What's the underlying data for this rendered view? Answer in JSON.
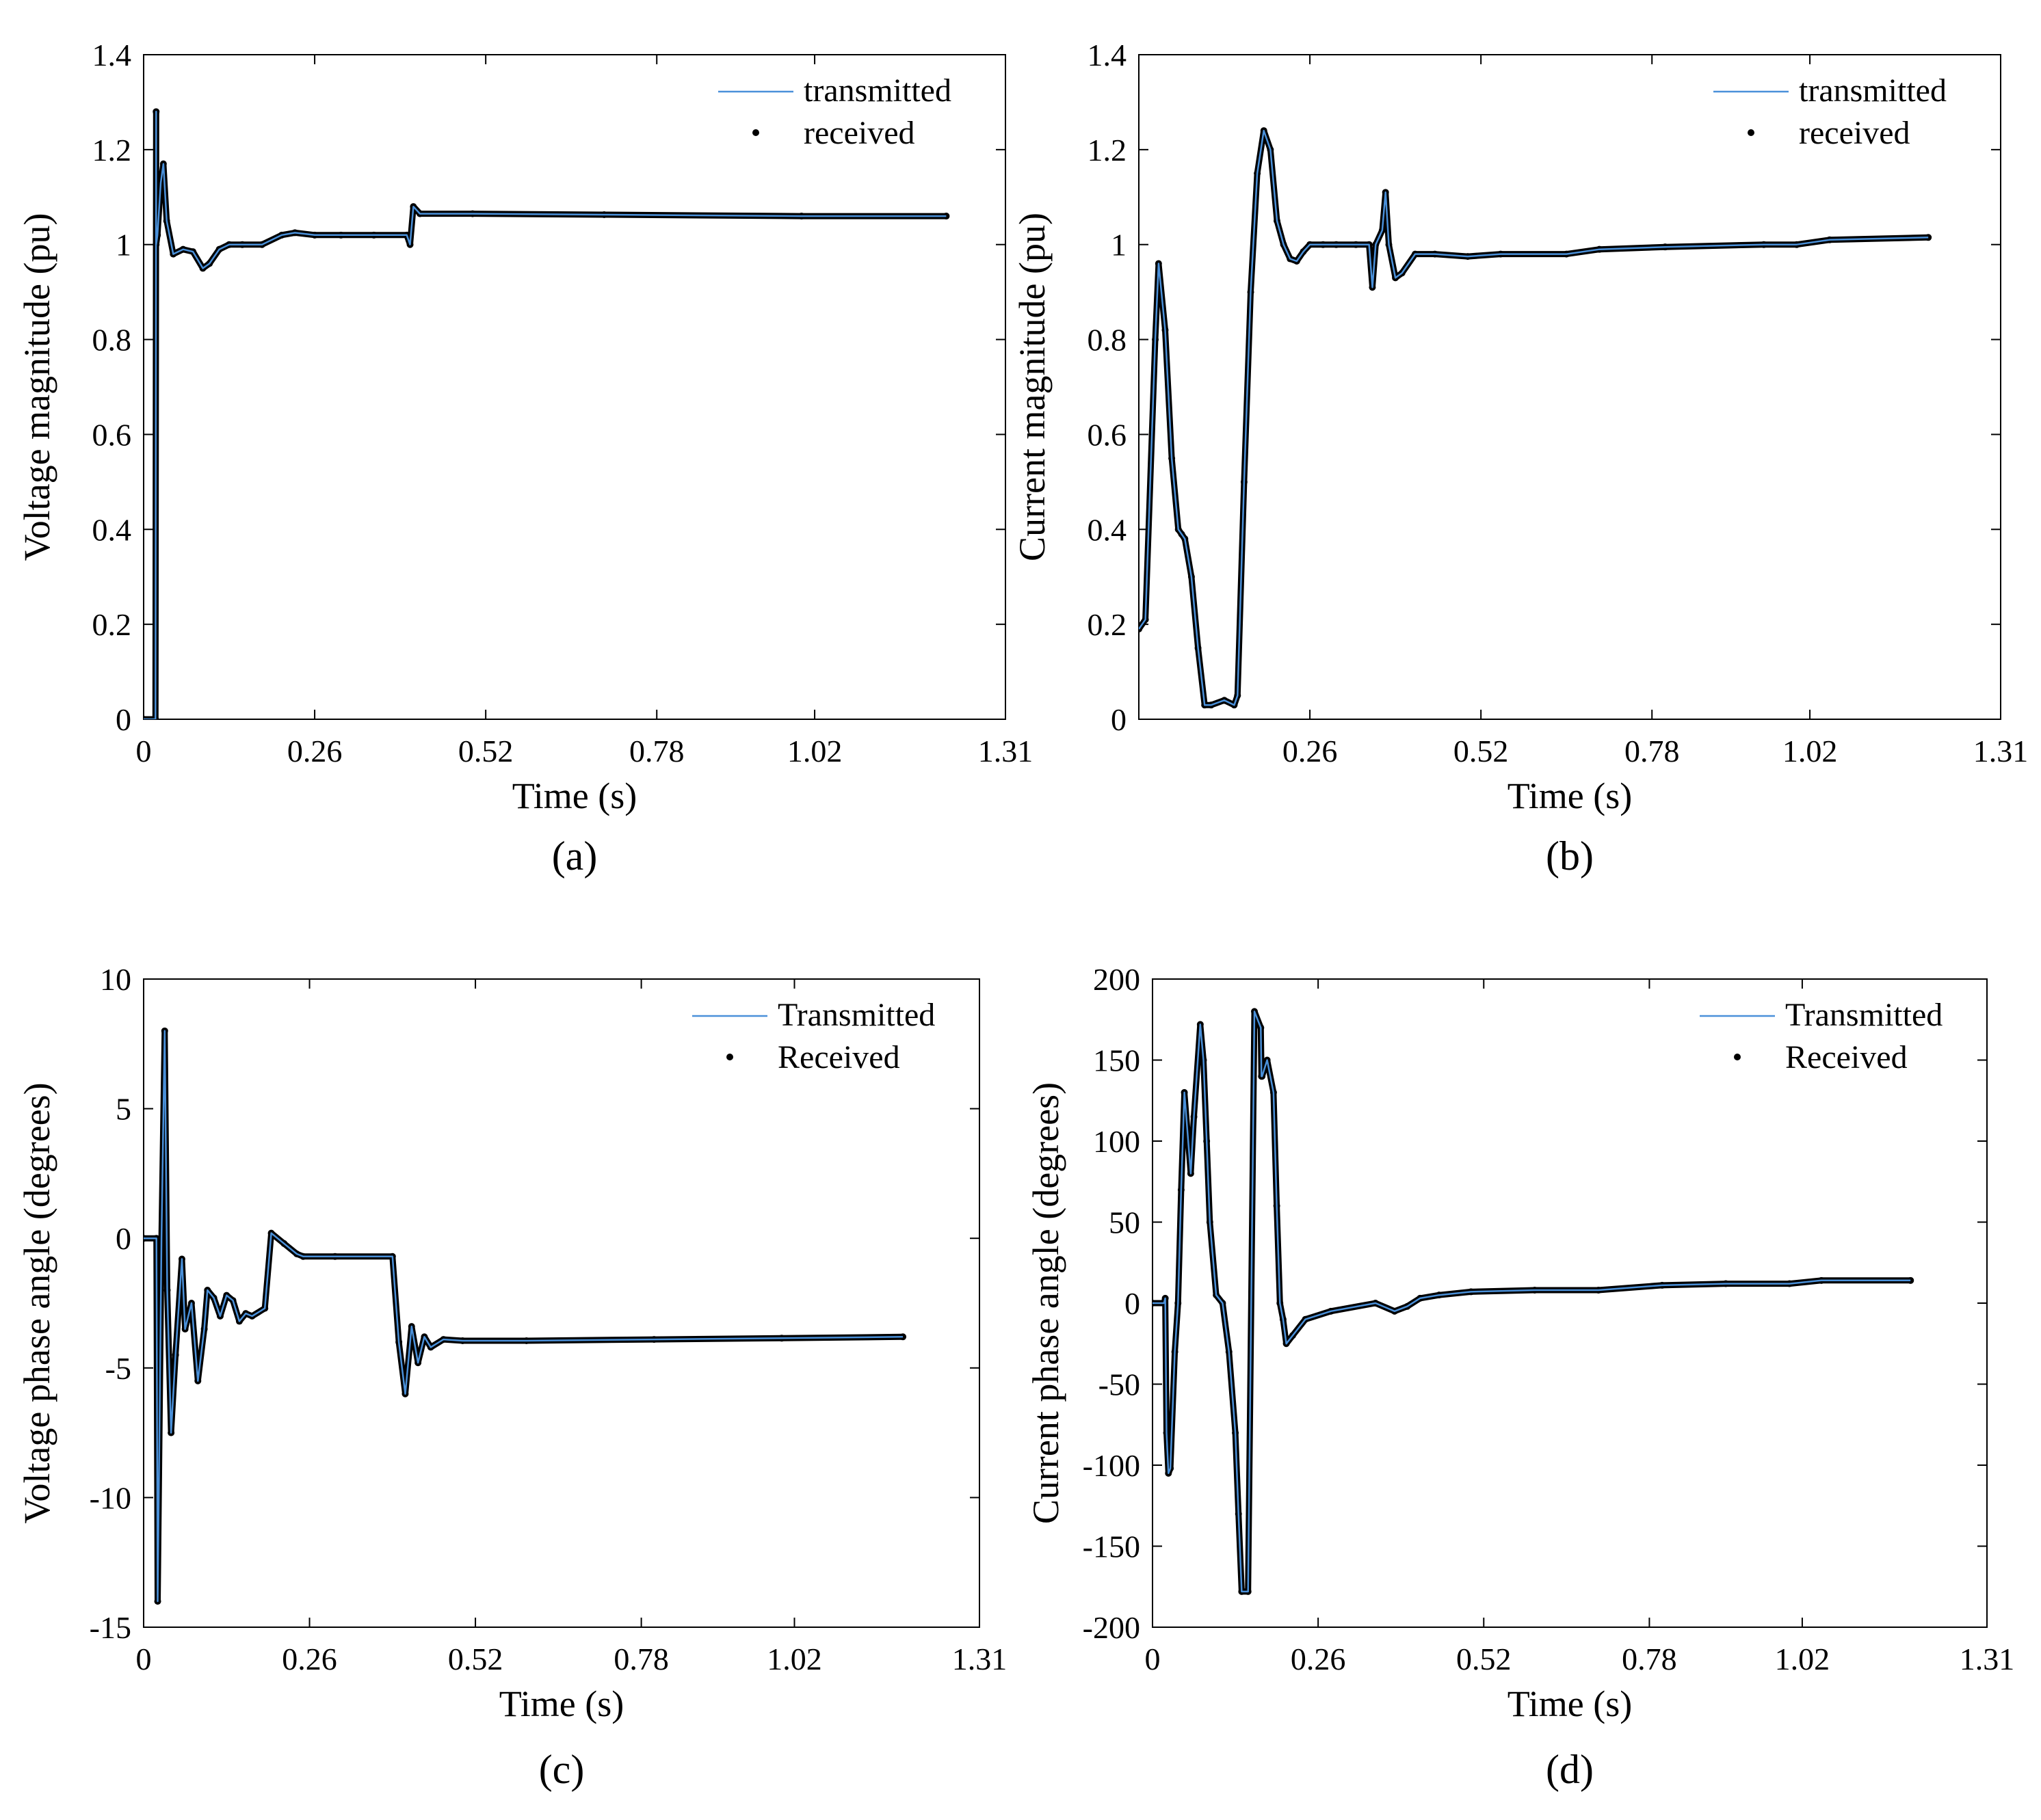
{
  "chart_data": [
    {
      "id": "a",
      "type": "line",
      "panel_label": "(a)",
      "xlabel": "Time (s)",
      "ylabel": "Voltage magnitude (pu)",
      "xlim": [
        0,
        1.31
      ],
      "ylim": [
        0,
        1.4
      ],
      "xticks": [
        0,
        0.26,
        0.52,
        0.78,
        1.02,
        1.31
      ],
      "xtick_labels": [
        "0",
        "0.26",
        "0.52",
        "0.78",
        "1.02",
        "1.31"
      ],
      "yticks": [
        0,
        0.2,
        0.4,
        0.6,
        0.8,
        1,
        1.2,
        1.4
      ],
      "ytick_labels": [
        "0",
        "0.2",
        "0.4",
        "0.6",
        "0.8",
        "1",
        "1.2",
        "1.4"
      ],
      "legend": [
        "transmitted",
        "received"
      ],
      "legend_position": "top-right",
      "series": [
        {
          "name": "transmitted",
          "color": "#4a90d9",
          "x": [
            0,
            0.018,
            0.019,
            0.019,
            0.021,
            0.026,
            0.03,
            0.035,
            0.045,
            0.06,
            0.075,
            0.09,
            0.1,
            0.115,
            0.13,
            0.15,
            0.18,
            0.21,
            0.23,
            0.26,
            0.3,
            0.35,
            0.4,
            0.405,
            0.41,
            0.42,
            0.5,
            0.7,
            1.0,
            1.22
          ],
          "y": [
            0,
            0,
            1.28,
            1.0,
            1.02,
            1.13,
            1.17,
            1.05,
            0.98,
            0.99,
            0.985,
            0.95,
            0.96,
            0.99,
            1.0,
            1.0,
            1.0,
            1.02,
            1.025,
            1.02,
            1.02,
            1.02,
            1.02,
            1.0,
            1.08,
            1.065,
            1.065,
            1.063,
            1.06,
            1.06
          ]
        },
        {
          "name": "received",
          "color": "#000000",
          "x": [
            0,
            0.018,
            0.019,
            0.019,
            0.021,
            0.026,
            0.03,
            0.035,
            0.045,
            0.06,
            0.075,
            0.09,
            0.1,
            0.115,
            0.13,
            0.15,
            0.18,
            0.21,
            0.23,
            0.26,
            0.3,
            0.35,
            0.4,
            0.405,
            0.41,
            0.42,
            0.5,
            0.7,
            1.0,
            1.22
          ],
          "y": [
            0,
            0,
            1.28,
            1.0,
            1.02,
            1.13,
            1.17,
            1.05,
            0.98,
            0.99,
            0.985,
            0.95,
            0.96,
            0.99,
            1.0,
            1.0,
            1.0,
            1.02,
            1.025,
            1.02,
            1.02,
            1.02,
            1.02,
            1.0,
            1.08,
            1.065,
            1.065,
            1.063,
            1.06,
            1.06
          ]
        }
      ]
    },
    {
      "id": "b",
      "type": "line",
      "panel_label": "(b)",
      "xlabel": "Time (s)",
      "ylabel": "Current magnitude (pu)",
      "xlim": [
        0,
        1.31
      ],
      "ylim": [
        0,
        1.4
      ],
      "xticks": [
        0.26,
        0.52,
        0.78,
        1.02,
        1.31
      ],
      "xtick_labels": [
        "0.26",
        "0.52",
        "0.78",
        "1.02",
        "1.31"
      ],
      "yticks": [
        0,
        0.2,
        0.4,
        0.6,
        0.8,
        1,
        1.2,
        1.4
      ],
      "ytick_labels": [
        "0",
        "0.2",
        "0.4",
        "0.6",
        "0.8",
        "1",
        "1.2",
        "1.4"
      ],
      "legend": [
        "transmitted",
        "received"
      ],
      "legend_position": "top-right",
      "series": [
        {
          "name": "transmitted",
          "color": "#4a90d9",
          "x": [
            0,
            0.01,
            0.025,
            0.03,
            0.04,
            0.05,
            0.06,
            0.065,
            0.07,
            0.08,
            0.09,
            0.1,
            0.11,
            0.13,
            0.145,
            0.15,
            0.16,
            0.17,
            0.18,
            0.19,
            0.2,
            0.21,
            0.22,
            0.23,
            0.24,
            0.25,
            0.26,
            0.28,
            0.3,
            0.33,
            0.35,
            0.355,
            0.36,
            0.37,
            0.375,
            0.38,
            0.39,
            0.4,
            0.42,
            0.45,
            0.5,
            0.55,
            0.65,
            0.7,
            0.8,
            0.95,
            1.0,
            1.05,
            1.2
          ],
          "y": [
            0.19,
            0.21,
            0.8,
            0.96,
            0.82,
            0.55,
            0.4,
            0.39,
            0.38,
            0.3,
            0.15,
            0.03,
            0.03,
            0.04,
            0.03,
            0.05,
            0.5,
            0.9,
            1.15,
            1.24,
            1.2,
            1.05,
            1.0,
            0.97,
            0.965,
            0.985,
            1.0,
            1.0,
            1.0,
            1.0,
            1.0,
            0.91,
            1.0,
            1.03,
            1.11,
            1.0,
            0.93,
            0.94,
            0.98,
            0.98,
            0.975,
            0.98,
            0.98,
            0.99,
            0.995,
            1.0,
            1.0,
            1.01,
            1.015
          ]
        },
        {
          "name": "received",
          "color": "#000000",
          "x": [
            0,
            0.01,
            0.025,
            0.03,
            0.04,
            0.05,
            0.06,
            0.065,
            0.07,
            0.08,
            0.09,
            0.1,
            0.11,
            0.13,
            0.145,
            0.15,
            0.16,
            0.17,
            0.18,
            0.19,
            0.2,
            0.21,
            0.22,
            0.23,
            0.24,
            0.25,
            0.26,
            0.28,
            0.3,
            0.33,
            0.35,
            0.355,
            0.36,
            0.37,
            0.375,
            0.38,
            0.39,
            0.4,
            0.42,
            0.45,
            0.5,
            0.55,
            0.65,
            0.7,
            0.8,
            0.95,
            1.0,
            1.05,
            1.2
          ],
          "y": [
            0.19,
            0.21,
            0.8,
            0.96,
            0.82,
            0.55,
            0.4,
            0.39,
            0.38,
            0.3,
            0.15,
            0.03,
            0.03,
            0.04,
            0.03,
            0.05,
            0.5,
            0.9,
            1.15,
            1.24,
            1.2,
            1.05,
            1.0,
            0.97,
            0.965,
            0.985,
            1.0,
            1.0,
            1.0,
            1.0,
            1.0,
            0.91,
            1.0,
            1.03,
            1.11,
            1.0,
            0.93,
            0.94,
            0.98,
            0.98,
            0.975,
            0.98,
            0.98,
            0.99,
            0.995,
            1.0,
            1.0,
            1.01,
            1.015
          ]
        }
      ]
    },
    {
      "id": "c",
      "type": "line",
      "panel_label": "(c)",
      "xlabel": "Time (s)",
      "ylabel": "Voltage phase angle (degrees)",
      "xlim": [
        0,
        1.31
      ],
      "ylim": [
        -15,
        10
      ],
      "xticks": [
        0,
        0.26,
        0.52,
        0.78,
        1.02,
        1.31
      ],
      "xtick_labels": [
        "0",
        "0.26",
        "0.52",
        "0.78",
        "1.02",
        "1.31"
      ],
      "yticks": [
        -15,
        -10,
        -5,
        0,
        5,
        10
      ],
      "ytick_labels": [
        "-15",
        "-10",
        "-5",
        "0",
        "5",
        "10"
      ],
      "legend": [
        "Transmitted",
        "Received"
      ],
      "legend_position": "top-right",
      "series": [
        {
          "name": "Transmitted",
          "color": "#4a90d9",
          "x": [
            0,
            0.02,
            0.022,
            0.028,
            0.033,
            0.037,
            0.043,
            0.05,
            0.06,
            0.065,
            0.075,
            0.085,
            0.095,
            0.1,
            0.11,
            0.12,
            0.13,
            0.14,
            0.15,
            0.16,
            0.17,
            0.19,
            0.2,
            0.22,
            0.24,
            0.25,
            0.3,
            0.39,
            0.4,
            0.41,
            0.42,
            0.43,
            0.44,
            0.45,
            0.47,
            0.5,
            0.6,
            0.8,
            1.0,
            1.19
          ],
          "y": [
            0,
            0,
            -14,
            0,
            8,
            -2,
            -7.5,
            -4.5,
            -0.8,
            -3.5,
            -2.5,
            -5.5,
            -3.5,
            -2,
            -2.3,
            -3,
            -2.2,
            -2.4,
            -3.2,
            -2.9,
            -3,
            -2.7,
            0.2,
            -0.2,
            -0.6,
            -0.7,
            -0.7,
            -0.7,
            -4,
            -6,
            -3.4,
            -4.8,
            -3.8,
            -4.2,
            -3.9,
            -3.95,
            -3.95,
            -3.9,
            -3.85,
            -3.8
          ]
        },
        {
          "name": "Received",
          "color": "#000000",
          "x": [
            0,
            0.02,
            0.022,
            0.028,
            0.033,
            0.037,
            0.043,
            0.05,
            0.06,
            0.065,
            0.075,
            0.085,
            0.095,
            0.1,
            0.11,
            0.12,
            0.13,
            0.14,
            0.15,
            0.16,
            0.17,
            0.19,
            0.2,
            0.22,
            0.24,
            0.25,
            0.3,
            0.39,
            0.4,
            0.41,
            0.42,
            0.43,
            0.44,
            0.45,
            0.47,
            0.5,
            0.6,
            0.8,
            1.0,
            1.19
          ],
          "y": [
            0,
            0,
            -14,
            0,
            8,
            -2,
            -7.5,
            -4.5,
            -0.8,
            -3.5,
            -2.5,
            -5.5,
            -3.5,
            -2,
            -2.3,
            -3,
            -2.2,
            -2.4,
            -3.2,
            -2.9,
            -3,
            -2.7,
            0.2,
            -0.2,
            -0.6,
            -0.7,
            -0.7,
            -0.7,
            -4,
            -6,
            -3.4,
            -4.8,
            -3.8,
            -4.2,
            -3.9,
            -3.95,
            -3.95,
            -3.9,
            -3.85,
            -3.8
          ]
        }
      ]
    },
    {
      "id": "d",
      "type": "line",
      "panel_label": "(d)",
      "xlabel": "Time (s)",
      "ylabel": "Current phase angle (degrees)",
      "xlim": [
        0,
        1.31
      ],
      "ylim": [
        -200,
        200
      ],
      "xticks": [
        0,
        0.26,
        0.52,
        0.78,
        1.02,
        1.31
      ],
      "xtick_labels": [
        "0",
        "0.26",
        "0.52",
        "0.78",
        "1.02",
        "1.31"
      ],
      "yticks": [
        -200,
        -150,
        -100,
        -50,
        0,
        50,
        100,
        150,
        200
      ],
      "ytick_labels": [
        "-200",
        "-150",
        "-100",
        "-50",
        "0",
        "50",
        "100",
        "150",
        "200"
      ],
      "legend": [
        "Transmitted",
        "Received"
      ],
      "legend_position": "top-right",
      "series": [
        {
          "name": "Transmitted",
          "color": "#4a90d9",
          "x": [
            0,
            0.018,
            0.02,
            0.022,
            0.025,
            0.028,
            0.035,
            0.04,
            0.045,
            0.05,
            0.06,
            0.065,
            0.075,
            0.08,
            0.085,
            0.09,
            0.1,
            0.11,
            0.12,
            0.13,
            0.135,
            0.14,
            0.15,
            0.16,
            0.17,
            0.171,
            0.172,
            0.18,
            0.19,
            0.195,
            0.2,
            0.205,
            0.21,
            0.22,
            0.24,
            0.28,
            0.35,
            0.38,
            0.4,
            0.42,
            0.45,
            0.5,
            0.6,
            0.7,
            0.8,
            0.9,
            1.0,
            1.05,
            1.19
          ],
          "y": [
            0,
            0,
            3,
            -80,
            -105,
            -102,
            -30,
            0,
            70,
            130,
            80,
            115,
            172,
            150,
            100,
            50,
            5,
            0,
            -30,
            -80,
            -130,
            -178,
            -178,
            180,
            170,
            140,
            140,
            150,
            130,
            60,
            0,
            -10,
            -25,
            -20,
            -10,
            -5,
            0,
            -5,
            -2,
            3,
            5,
            7,
            8,
            8,
            11,
            12,
            12,
            14,
            14
          ]
        },
        {
          "name": "Received",
          "color": "#000000",
          "x": [
            0,
            0.018,
            0.02,
            0.022,
            0.025,
            0.028,
            0.035,
            0.04,
            0.045,
            0.05,
            0.06,
            0.065,
            0.075,
            0.08,
            0.085,
            0.09,
            0.1,
            0.11,
            0.12,
            0.13,
            0.135,
            0.14,
            0.15,
            0.16,
            0.17,
            0.171,
            0.172,
            0.18,
            0.19,
            0.195,
            0.2,
            0.205,
            0.21,
            0.22,
            0.24,
            0.28,
            0.35,
            0.38,
            0.4,
            0.42,
            0.45,
            0.5,
            0.6,
            0.7,
            0.8,
            0.9,
            1.0,
            1.05,
            1.19
          ],
          "y": [
            0,
            0,
            3,
            -80,
            -105,
            -102,
            -30,
            0,
            70,
            130,
            80,
            115,
            172,
            150,
            100,
            50,
            5,
            0,
            -30,
            -80,
            -130,
            -178,
            -178,
            180,
            170,
            140,
            140,
            150,
            130,
            60,
            0,
            -10,
            -25,
            -20,
            -10,
            -5,
            0,
            -5,
            -2,
            3,
            5,
            7,
            8,
            8,
            11,
            12,
            12,
            14,
            14
          ]
        }
      ]
    }
  ]
}
